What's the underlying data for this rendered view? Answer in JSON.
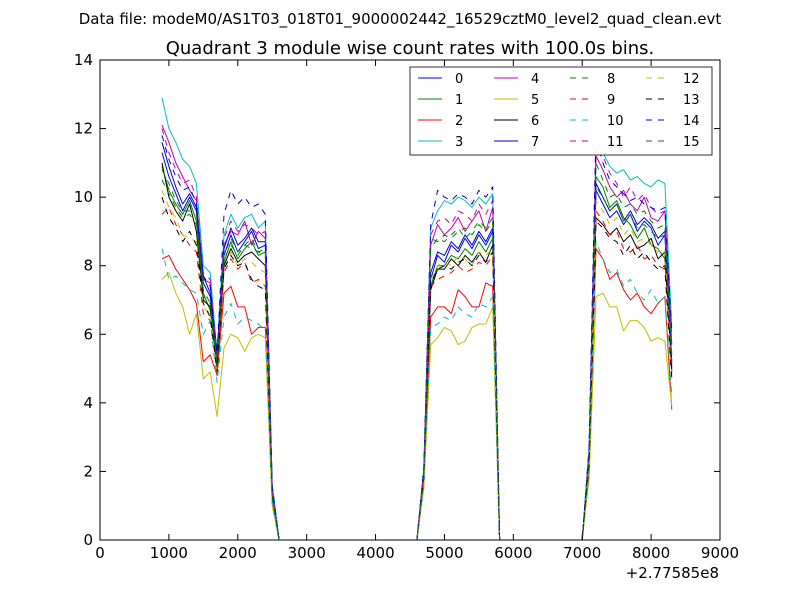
{
  "chart_data": {
    "type": "line",
    "suptitle": "Data file: modeM0/AS1T03_018T01_9000002442_16529cztM0_level2_quad_clean.evt",
    "title": "Quadrant 3 module wise count rates with 100.0s bins.",
    "x_offset_label": "+2.77585e8",
    "xlim": [
      0,
      9000
    ],
    "ylim": [
      0,
      14
    ],
    "x_ticks": [
      0,
      1000,
      2000,
      3000,
      4000,
      5000,
      6000,
      7000,
      8000,
      9000
    ],
    "y_ticks": [
      0,
      2,
      4,
      6,
      8,
      10,
      12,
      14
    ],
    "legend_position": "top-right",
    "x": [
      900,
      1000,
      1100,
      1200,
      1300,
      1400,
      1500,
      1600,
      1700,
      1800,
      1900,
      2000,
      2100,
      2200,
      2300,
      2400,
      2500,
      2600,
      2700,
      4600,
      4700,
      4800,
      4900,
      5000,
      5100,
      5200,
      5300,
      5400,
      5500,
      5600,
      5700,
      5800,
      5900,
      7000,
      7100,
      7200,
      7300,
      7400,
      7500,
      7600,
      7700,
      7800,
      7900,
      8000,
      8100,
      8200,
      8300
    ],
    "series": [
      {
        "name": "0",
        "color": "#0000ff",
        "dash": "solid",
        "values": [
          11.3,
          10.6,
          10.1,
          9.6,
          10.0,
          9.6,
          7.5,
          7.1,
          5.3,
          8.3,
          8.9,
          8.4,
          8.7,
          9.0,
          8.5,
          8.6,
          1.5,
          0.0,
          0.0,
          0.0,
          2.0,
          7.6,
          8.3,
          8.1,
          8.6,
          8.4,
          8.8,
          8.5,
          8.9,
          8.6,
          9.0,
          0.0,
          0.0,
          0.0,
          2.5,
          10.2,
          9.8,
          9.4,
          9.6,
          9.2,
          9.5,
          9.0,
          9.3,
          9.1,
          8.6,
          8.9,
          5.0
        ]
      },
      {
        "name": "1",
        "color": "#008000",
        "dash": "solid",
        "values": [
          10.9,
          10.2,
          9.8,
          9.5,
          9.9,
          9.3,
          7.2,
          6.7,
          5.0,
          8.1,
          8.7,
          8.2,
          8.5,
          8.7,
          8.3,
          8.4,
          1.4,
          0.0,
          0.0,
          0.0,
          1.9,
          7.4,
          8.0,
          8.0,
          8.3,
          8.2,
          8.5,
          8.3,
          8.7,
          8.4,
          8.8,
          0.0,
          0.0,
          0.0,
          2.4,
          10.6,
          10.3,
          9.7,
          9.9,
          9.4,
          9.2,
          8.8,
          9.1,
          8.6,
          8.5,
          8.2,
          5.1
        ]
      },
      {
        "name": "2",
        "color": "#ff0000",
        "dash": "solid",
        "values": [
          8.2,
          8.3,
          7.9,
          7.6,
          7.3,
          6.9,
          5.2,
          5.4,
          4.8,
          7.2,
          7.4,
          6.8,
          6.8,
          6.0,
          6.2,
          6.2,
          1.1,
          0.0,
          0.0,
          0.0,
          1.6,
          6.5,
          6.8,
          6.8,
          6.6,
          7.3,
          7.1,
          6.8,
          6.8,
          7.5,
          7.4,
          0.0,
          0.0,
          0.0,
          2.0,
          8.5,
          8.2,
          7.6,
          7.8,
          7.3,
          7.0,
          7.2,
          6.8,
          6.6,
          6.9,
          7.1,
          3.8
        ]
      },
      {
        "name": "3",
        "color": "#00bfbf",
        "dash": "solid",
        "values": [
          12.9,
          12.0,
          11.6,
          11.1,
          10.9,
          10.4,
          8.0,
          7.8,
          5.4,
          8.9,
          9.5,
          9.1,
          9.4,
          9.5,
          9.1,
          9.3,
          1.6,
          0.0,
          0.0,
          0.0,
          2.1,
          9.1,
          9.6,
          9.9,
          9.8,
          10.0,
          9.9,
          9.7,
          10.0,
          9.8,
          10.1,
          0.0,
          0.0,
          0.0,
          2.7,
          11.6,
          11.3,
          10.9,
          10.7,
          10.8,
          10.5,
          10.6,
          10.4,
          10.3,
          10.5,
          10.4,
          6.2
        ]
      },
      {
        "name": "4",
        "color": "#bf00bf",
        "dash": "solid",
        "values": [
          12.1,
          11.6,
          11.0,
          10.6,
          10.2,
          9.9,
          7.6,
          7.5,
          5.2,
          8.6,
          9.0,
          8.9,
          9.3,
          8.6,
          9.0,
          8.8,
          1.5,
          0.0,
          0.0,
          0.0,
          2.0,
          8.6,
          9.2,
          8.9,
          9.1,
          9.4,
          9.0,
          9.3,
          9.6,
          9.0,
          9.7,
          0.0,
          0.0,
          0.0,
          2.6,
          11.2,
          10.8,
          10.3,
          10.0,
          10.2,
          9.8,
          9.6,
          10.0,
          9.4,
          9.3,
          9.6,
          5.7
        ]
      },
      {
        "name": "5",
        "color": "#bfbf00",
        "dash": "solid",
        "values": [
          7.6,
          7.8,
          7.2,
          6.8,
          6.0,
          6.6,
          4.7,
          4.9,
          3.6,
          5.6,
          6.0,
          5.9,
          5.5,
          5.9,
          6.0,
          5.9,
          1.0,
          0.0,
          0.0,
          0.0,
          1.5,
          5.7,
          5.9,
          6.2,
          6.1,
          5.7,
          5.8,
          6.2,
          6.3,
          6.3,
          6.8,
          0.0,
          0.0,
          0.0,
          1.8,
          7.1,
          7.2,
          6.8,
          6.8,
          6.1,
          6.4,
          6.4,
          6.2,
          5.8,
          5.9,
          5.8,
          3.9
        ]
      },
      {
        "name": "6",
        "color": "#000000",
        "dash": "solid",
        "values": [
          11.0,
          10.0,
          9.6,
          9.3,
          9.8,
          9.0,
          7.0,
          6.8,
          5.0,
          8.0,
          8.5,
          8.1,
          8.3,
          8.4,
          8.2,
          8.0,
          1.4,
          0.0,
          0.0,
          0.0,
          1.9,
          7.3,
          7.9,
          7.9,
          8.2,
          8.0,
          8.3,
          8.1,
          8.4,
          8.1,
          8.6,
          0.0,
          0.0,
          0.0,
          2.3,
          9.4,
          9.2,
          8.9,
          9.1,
          8.7,
          8.9,
          8.5,
          8.6,
          8.8,
          8.2,
          8.4,
          4.9
        ]
      },
      {
        "name": "7",
        "color": "#0000cc",
        "dash": "solid",
        "values": [
          11.6,
          10.9,
          10.3,
          9.8,
          10.1,
          9.7,
          7.7,
          7.2,
          5.5,
          8.5,
          9.1,
          8.6,
          8.8,
          9.1,
          8.7,
          8.7,
          1.5,
          0.0,
          0.0,
          0.0,
          2.0,
          7.8,
          8.4,
          8.3,
          8.7,
          8.5,
          8.9,
          8.6,
          9.0,
          8.7,
          9.1,
          0.0,
          0.0,
          0.0,
          2.5,
          10.4,
          10.0,
          9.6,
          9.8,
          9.3,
          9.6,
          9.2,
          9.4,
          9.2,
          8.8,
          9.0,
          5.2
        ]
      },
      {
        "name": "8",
        "color": "#008000",
        "dash": "dashed",
        "values": [
          10.8,
          10.4,
          9.9,
          9.6,
          9.6,
          9.5,
          7.3,
          6.9,
          5.1,
          8.2,
          8.6,
          8.3,
          8.6,
          8.8,
          8.4,
          8.5,
          1.4,
          0.0,
          0.0,
          0.0,
          1.9,
          8.8,
          8.7,
          8.9,
          8.8,
          9.0,
          9.1,
          8.9,
          9.2,
          9.0,
          9.3,
          0.0,
          0.0,
          0.0,
          2.6,
          11.0,
          10.5,
          10.0,
          10.1,
          9.7,
          9.8,
          9.5,
          9.6,
          9.3,
          9.1,
          9.2,
          5.3
        ]
      },
      {
        "name": "9",
        "color": "#ff0000",
        "dash": "dashed",
        "values": [
          9.5,
          9.7,
          9.2,
          8.9,
          8.6,
          8.4,
          6.6,
          6.4,
          4.9,
          7.8,
          8.2,
          7.9,
          8.1,
          7.5,
          7.6,
          7.4,
          1.3,
          0.0,
          0.0,
          0.0,
          1.8,
          7.4,
          7.6,
          7.7,
          7.8,
          8.0,
          7.8,
          7.9,
          8.1,
          8.0,
          8.3,
          0.0,
          0.0,
          0.0,
          2.2,
          9.6,
          9.3,
          8.9,
          9.0,
          8.5,
          8.4,
          8.6,
          8.2,
          8.3,
          8.0,
          7.9,
          4.6
        ]
      },
      {
        "name": "10",
        "color": "#00bfbf",
        "dash": "dashed",
        "values": [
          8.5,
          7.6,
          7.7,
          7.5,
          7.3,
          7.2,
          6.0,
          6.4,
          4.6,
          6.5,
          6.9,
          6.3,
          6.5,
          6.4,
          6.3,
          6.1,
          1.1,
          0.0,
          0.0,
          0.0,
          1.6,
          6.2,
          6.3,
          6.5,
          6.4,
          6.8,
          6.6,
          6.5,
          6.9,
          6.8,
          7.1,
          0.0,
          0.0,
          0.0,
          2.0,
          8.7,
          8.2,
          7.8,
          7.9,
          7.4,
          7.6,
          7.2,
          7.0,
          7.3,
          6.9,
          7.1,
          4.2
        ]
      },
      {
        "name": "11",
        "color": "#bf00bf",
        "dash": "dashed",
        "values": [
          12.0,
          11.3,
          10.8,
          10.4,
          10.5,
          10.0,
          7.8,
          7.6,
          5.3,
          8.8,
          9.3,
          9.0,
          9.2,
          9.1,
          8.9,
          9.0,
          1.5,
          0.0,
          0.0,
          0.0,
          2.0,
          8.9,
          9.3,
          9.4,
          9.2,
          9.6,
          9.5,
          9.3,
          9.8,
          9.5,
          9.9,
          0.0,
          0.0,
          0.0,
          2.6,
          12.1,
          11.2,
          10.7,
          10.4,
          10.0,
          10.3,
          9.9,
          10.1,
          9.7,
          9.5,
          9.6,
          5.9
        ]
      },
      {
        "name": "12",
        "color": "#bfbf00",
        "dash": "dashed",
        "values": [
          10.2,
          9.7,
          9.4,
          8.9,
          8.8,
          8.7,
          6.8,
          6.6,
          4.8,
          7.9,
          8.4,
          8.0,
          8.2,
          8.1,
          7.9,
          7.8,
          1.3,
          0.0,
          0.0,
          0.0,
          1.8,
          7.6,
          8.0,
          8.1,
          8.0,
          8.3,
          8.2,
          8.0,
          8.4,
          8.3,
          8.5,
          0.0,
          0.0,
          0.0,
          2.3,
          9.9,
          9.6,
          9.2,
          9.4,
          8.9,
          9.1,
          8.7,
          8.8,
          8.6,
          8.4,
          8.5,
          4.8
        ]
      },
      {
        "name": "13",
        "color": "#000000",
        "dash": "dashed",
        "values": [
          10.0,
          9.4,
          9.1,
          8.7,
          9.0,
          8.6,
          6.9,
          6.5,
          4.9,
          7.9,
          8.3,
          8.0,
          8.1,
          7.6,
          7.4,
          7.3,
          1.3,
          0.0,
          0.0,
          0.0,
          1.8,
          7.5,
          7.9,
          8.0,
          7.9,
          8.1,
          8.2,
          8.0,
          8.3,
          8.1,
          8.4,
          0.0,
          0.0,
          0.0,
          2.2,
          9.3,
          9.1,
          8.8,
          8.7,
          8.3,
          8.6,
          8.2,
          8.4,
          8.1,
          7.9,
          8.0,
          4.7
        ]
      },
      {
        "name": "14",
        "color": "#0000cc",
        "dash": "dashed",
        "values": [
          11.8,
          11.1,
          10.6,
          10.2,
          10.3,
          9.8,
          7.7,
          7.4,
          5.4,
          9.5,
          10.2,
          9.8,
          10.0,
          9.7,
          9.8,
          9.5,
          1.6,
          0.0,
          0.0,
          0.0,
          2.1,
          9.2,
          10.2,
          10.0,
          9.9,
          10.1,
          10.0,
          9.8,
          10.2,
          10.0,
          10.3,
          0.0,
          0.0,
          0.0,
          2.7,
          11.7,
          11.0,
          10.5,
          10.3,
          10.1,
          9.9,
          10.0,
          9.8,
          9.7,
          9.6,
          9.7,
          6.0
        ]
      },
      {
        "name": "15",
        "color": "#008000",
        "dash": "dashed",
        "values": [
          10.5,
          10.1,
          9.7,
          9.4,
          9.5,
          9.2,
          7.1,
          6.9,
          5.1,
          8.3,
          8.8,
          8.4,
          8.6,
          8.5,
          8.4,
          8.3,
          1.4,
          0.0,
          0.0,
          0.0,
          1.9,
          8.5,
          8.8,
          8.7,
          8.9,
          9.1,
          8.8,
          9.0,
          9.3,
          9.1,
          9.4,
          0.0,
          0.0,
          0.0,
          2.4,
          10.3,
          10.0,
          9.6,
          9.8,
          9.3,
          9.5,
          9.1,
          9.2,
          9.0,
          8.8,
          8.9,
          5.4
        ]
      }
    ]
  }
}
